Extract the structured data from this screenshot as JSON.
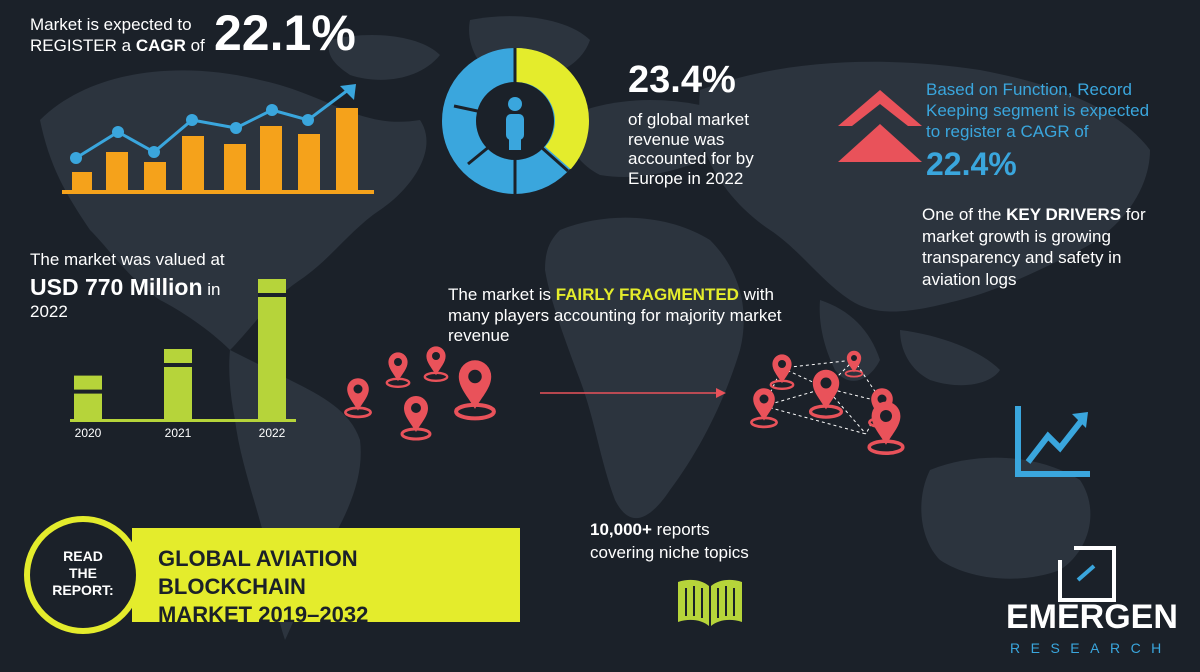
{
  "cagr_block": {
    "line1": "Market is expected to",
    "line2_prefix": "REGISTER a ",
    "line2_bold": "CAGR",
    "line2_suffix": " of",
    "value": "22.1%"
  },
  "europe_block": {
    "value": "23.4%",
    "line1": "of global market",
    "line2": "revenue was",
    "line3": "accounted for by",
    "line4": "Europe in 2022"
  },
  "function_block": {
    "line1": "Based on Function, Record",
    "line2": "Keeping segment is expected",
    "line3": "to register a CAGR of",
    "value": "22.4%"
  },
  "drivers_block": {
    "line1_prefix": "One of the ",
    "line1_bold": "KEY DRIVERS",
    "line1_suffix": " for",
    "line2": "market growth is growing",
    "line3": "transparency and safety in",
    "line4": "aviation logs"
  },
  "valued_block": {
    "line1": "The market was valued at",
    "value_bold": "USD 770 Million",
    "value_suffix": " in",
    "year": "2022"
  },
  "bar_chart": {
    "years": [
      "2020",
      "2021",
      "2022"
    ],
    "relative_values": [
      0.31,
      0.5,
      1.0
    ]
  },
  "fragmented_block": {
    "prefix": "The market is ",
    "highlight": "FAIRLY FRAGMENTED",
    "suffix": " with",
    "line2": "many players accounting for majority market",
    "line3": "revenue"
  },
  "reports_block": {
    "bold": "10,000+",
    "line1_suffix": " reports",
    "line2": "covering niche topics"
  },
  "read_report": {
    "circle_lines": [
      "READ",
      "THE",
      "REPORT:"
    ],
    "title_line1": "GLOBAL AVIATION BLOCKCHAIN",
    "title_line2": "MARKET 2019–2032"
  },
  "logo": {
    "name": "EMERGEN",
    "sub": "RESEARCH"
  },
  "colors": {
    "background": "#1b2129",
    "map": "#2e3640",
    "orange": "#f5a21b",
    "blue": "#3aa6dd",
    "yellow": "#e4ec2c",
    "green": "#b6d43a",
    "red": "#e9525a",
    "pink_pin": "#f06b6f"
  },
  "icons": [
    "trend-chart-icon",
    "donut-person-icon",
    "double-up-arrow-icon",
    "location-pin-icon",
    "growth-arrow-icon",
    "open-book-icon",
    "logo-mark-icon"
  ]
}
